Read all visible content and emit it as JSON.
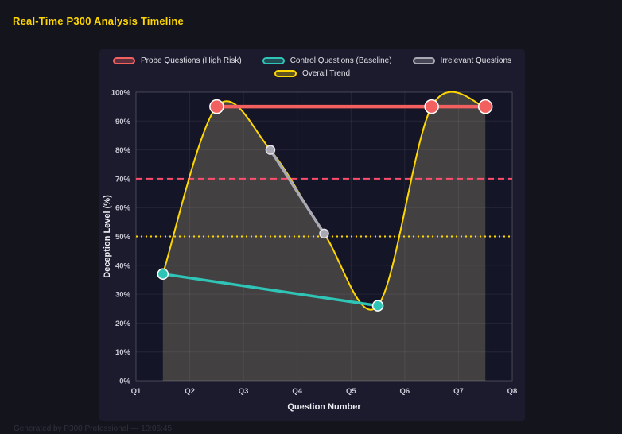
{
  "page": {
    "title": "Real-Time P300 Analysis Timeline",
    "footer": "Generated by P300 Professional — 10:05:45"
  },
  "chart_data": {
    "type": "line",
    "title": "Real-Time P300 Analysis Timeline",
    "xlabel": "Question Number",
    "ylabel": "Deception Level (%)",
    "x_range": [
      1,
      8
    ],
    "ylim": [
      0,
      100
    ],
    "grid": true,
    "legend_position": "top",
    "legend_rows": [
      [
        0,
        1,
        2
      ],
      [
        3
      ]
    ],
    "x_ticks": [
      {
        "v": 1,
        "label": "Q1"
      },
      {
        "v": 2,
        "label": "Q2"
      },
      {
        "v": 3,
        "label": "Q3"
      },
      {
        "v": 4,
        "label": "Q4"
      },
      {
        "v": 5,
        "label": "Q5"
      },
      {
        "v": 6,
        "label": "Q6"
      },
      {
        "v": 7,
        "label": "Q7"
      },
      {
        "v": 8,
        "label": "Q8"
      }
    ],
    "y_ticks": [
      {
        "v": 0,
        "label": "0%"
      },
      {
        "v": 10,
        "label": "10%"
      },
      {
        "v": 20,
        "label": "20%"
      },
      {
        "v": 30,
        "label": "30%"
      },
      {
        "v": 40,
        "label": "40%"
      },
      {
        "v": 50,
        "label": "50%"
      },
      {
        "v": 60,
        "label": "60%"
      },
      {
        "v": 70,
        "label": "70%"
      },
      {
        "v": 80,
        "label": "80%"
      },
      {
        "v": 90,
        "label": "90%"
      },
      {
        "v": 100,
        "label": "100%"
      }
    ],
    "series": [
      {
        "name": "Probe Questions (High Risk)",
        "color": "#f2605f",
        "x": [
          2.5,
          6.5,
          7.5
        ],
        "y": [
          95,
          95,
          95
        ],
        "width": 4.5,
        "marker_size": 8.5,
        "marker_edge": "#ffffff",
        "z": 4
      },
      {
        "name": "Control Questions (Baseline)",
        "color": "#2ec4b6",
        "x": [
          1.5,
          5.5
        ],
        "y": [
          37,
          26
        ],
        "width": 3.5,
        "marker_size": 6.5,
        "marker_edge": "#ffffff",
        "z": 3
      },
      {
        "name": "Irrelevant Questions",
        "color": "#a9a9b3",
        "x": [
          3.5,
          4.5
        ],
        "y": [
          80,
          51
        ],
        "width": 3.5,
        "marker_size": 5.5,
        "marker_edge": "#e6e6ee",
        "z": 2
      },
      {
        "name": "Overall Trend",
        "color": "#ffd700",
        "x": [
          1.5,
          2.5,
          3.5,
          4.5,
          5.5,
          6.5,
          7.5
        ],
        "y": [
          37,
          95,
          80,
          51,
          26,
          95,
          95
        ],
        "width": 2,
        "smooth": true,
        "fill": true,
        "z": 1
      }
    ],
    "thresholds": [
      {
        "y": 70,
        "color": "#ff4d6d",
        "style": "dashed"
      },
      {
        "y": 50,
        "color": "#ffd700",
        "style": "dotted"
      }
    ],
    "colors": {
      "page_bg": "#14141d",
      "panel_bg": "#1b1b2d",
      "plot_bg": "#151528",
      "grid": "rgba(255,255,255,0.07)",
      "frame": "rgba(255,255,255,0.14)",
      "area_fill": "rgba(232,220,160,0.22)",
      "title": "#ffd700"
    }
  }
}
